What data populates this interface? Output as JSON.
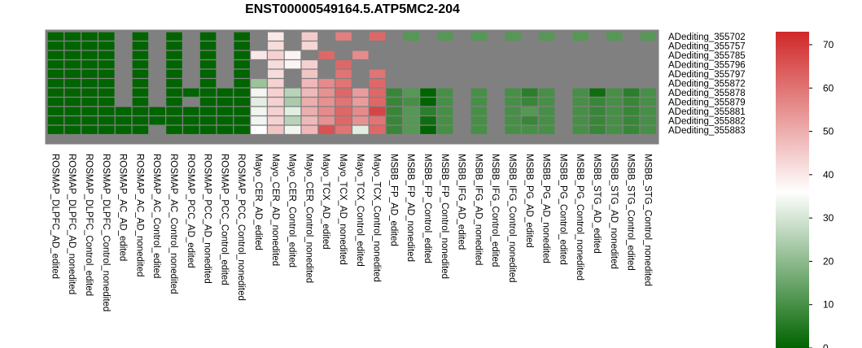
{
  "chart_data": {
    "type": "heatmap",
    "title": "ENST00000549164.5.ATP5MC2-204",
    "rows": [
      "ADediting_355702",
      "ADediting_355757",
      "ADediting_355785",
      "ADediting_355796",
      "ADediting_355797",
      "ADediting_355872",
      "ADediting_355878",
      "ADediting_355879",
      "ADediting_355881",
      "ADediting_355882",
      "ADediting_355883"
    ],
    "columns": [
      "ROSMAP_DLPFC_AD_edited",
      "ROSMAP_DLPFC_AD_nonedited",
      "ROSMAP_DLPFC_Control_edited",
      "ROSMAP_DLPFC_Control_nonedited",
      "ROSMAP_AC_AD_edited",
      "ROSMAP_AC_AD_nonedited",
      "ROSMAP_AC_Control_edited",
      "ROSMAP_AC_Control_nonedited",
      "ROSMAP_PCC_AD_edited",
      "ROSMAP_PCC_AD_nonedited",
      "ROSMAP_PCC_Control_edited",
      "ROSMAP_PCC_Control_nonedited",
      "Mayo_CER_AD_edited",
      "Mayo_CER_AD_nonedited",
      "Mayo_CER_Control_edited",
      "Mayo_CER_Control_nonedited",
      "Mayo_TCX_AD_edited",
      "Mayo_TCX_AD_nonedited",
      "Mayo_TCX_Control_edited",
      "Mayo_TCX_Control_nonedited",
      "MSBB_FP_AD_edited",
      "MSBB_FP_AD_nonedited",
      "MSBB_FP_Control_edited",
      "MSBB_FP_Control_nonedited",
      "MSBB_IFG_AD_edited",
      "MSBB_IFG_AD_nonedited",
      "MSBB_IFG_Control_edited",
      "MSBB_IFG_Control_nonedited",
      "MSBB_PG_AD_edited",
      "MSBB_PG_AD_nonedited",
      "MSBB_PG_Control_edited",
      "MSBB_PG_Control_nonedited",
      "MSBB_STG_AD_edited",
      "MSBB_STG_AD_nonedited",
      "MSBB_STG_Control_edited",
      "MSBB_STG_Control_nonedited"
    ],
    "values": [
      [
        0,
        0,
        0,
        0,
        null,
        0,
        null,
        0,
        null,
        0,
        null,
        0,
        null,
        40,
        null,
        45,
        null,
        58,
        null,
        62,
        null,
        12,
        null,
        12,
        null,
        12,
        null,
        12,
        null,
        12,
        null,
        12,
        null,
        12,
        null,
        12
      ],
      [
        0,
        0,
        0,
        0,
        null,
        0,
        null,
        0,
        null,
        0,
        null,
        0,
        null,
        42,
        null,
        43,
        null,
        null,
        null,
        null,
        null,
        null,
        null,
        null,
        null,
        null,
        null,
        null,
        null,
        null,
        null,
        null,
        null,
        null,
        null,
        null
      ],
      [
        0,
        0,
        0,
        0,
        null,
        0,
        null,
        0,
        null,
        0,
        null,
        0,
        40,
        44,
        38,
        null,
        62,
        null,
        56,
        null,
        null,
        null,
        null,
        null,
        null,
        null,
        null,
        null,
        null,
        null,
        null,
        null,
        null,
        null,
        null,
        null
      ],
      [
        0,
        0,
        0,
        0,
        null,
        0,
        null,
        0,
        null,
        0,
        null,
        0,
        null,
        42,
        38,
        44,
        null,
        62,
        null,
        null,
        null,
        null,
        null,
        null,
        null,
        null,
        null,
        null,
        null,
        null,
        null,
        null,
        null,
        null,
        null,
        null
      ],
      [
        0,
        0,
        0,
        0,
        null,
        0,
        null,
        0,
        null,
        0,
        null,
        0,
        null,
        42,
        null,
        46,
        null,
        60,
        null,
        60,
        null,
        null,
        null,
        null,
        null,
        null,
        null,
        null,
        null,
        null,
        null,
        null,
        null,
        null,
        null,
        null
      ],
      [
        0,
        0,
        0,
        0,
        null,
        0,
        null,
        0,
        null,
        0,
        null,
        0,
        22,
        44,
        null,
        48,
        56,
        60,
        null,
        62,
        null,
        null,
        null,
        null,
        null,
        null,
        null,
        null,
        null,
        null,
        null,
        null,
        null,
        null,
        null,
        null
      ],
      [
        0,
        0,
        0,
        0,
        null,
        0,
        null,
        0,
        0,
        0,
        0,
        0,
        34,
        44,
        26,
        48,
        55,
        62,
        53,
        62,
        8,
        12,
        0,
        10,
        null,
        10,
        null,
        10,
        6,
        10,
        null,
        10,
        2,
        10,
        6,
        10
      ],
      [
        0,
        0,
        0,
        0,
        null,
        0,
        null,
        0,
        null,
        0,
        0,
        0,
        32,
        44,
        24,
        50,
        55,
        60,
        53,
        62,
        8,
        10,
        0,
        10,
        null,
        10,
        null,
        10,
        8,
        10,
        null,
        10,
        8,
        10,
        8,
        10
      ],
      [
        0,
        0,
        0,
        0,
        0,
        0,
        0,
        0,
        0,
        0,
        0,
        0,
        34,
        44,
        32,
        50,
        56,
        62,
        56,
        68,
        8,
        12,
        6,
        10,
        null,
        10,
        null,
        10,
        12,
        10,
        null,
        10,
        8,
        10,
        8,
        10
      ],
      [
        0,
        0,
        0,
        0,
        0,
        0,
        0,
        0,
        0,
        0,
        0,
        0,
        34,
        44,
        26,
        48,
        55,
        62,
        55,
        60,
        8,
        12,
        2,
        10,
        null,
        10,
        null,
        10,
        8,
        10,
        null,
        10,
        8,
        10,
        8,
        10
      ],
      [
        0,
        0,
        0,
        0,
        0,
        0,
        null,
        0,
        0,
        0,
        0,
        0,
        36,
        46,
        34,
        48,
        66,
        60,
        32,
        62,
        8,
        12,
        0,
        10,
        null,
        10,
        null,
        10,
        10,
        10,
        null,
        10,
        8,
        10,
        8,
        10
      ]
    ],
    "missing_color": "#808080",
    "border_color": "#808080",
    "colorscale": [
      [
        0,
        "#006400"
      ],
      [
        36,
        "#ffffff"
      ],
      [
        73,
        "#d02828"
      ]
    ],
    "zlim": [
      0,
      73
    ],
    "colorbar_ticks": [
      0,
      10,
      20,
      30,
      40,
      50,
      60,
      70
    ],
    "row_label_position": "right",
    "column_label_orientation": "vertical"
  }
}
